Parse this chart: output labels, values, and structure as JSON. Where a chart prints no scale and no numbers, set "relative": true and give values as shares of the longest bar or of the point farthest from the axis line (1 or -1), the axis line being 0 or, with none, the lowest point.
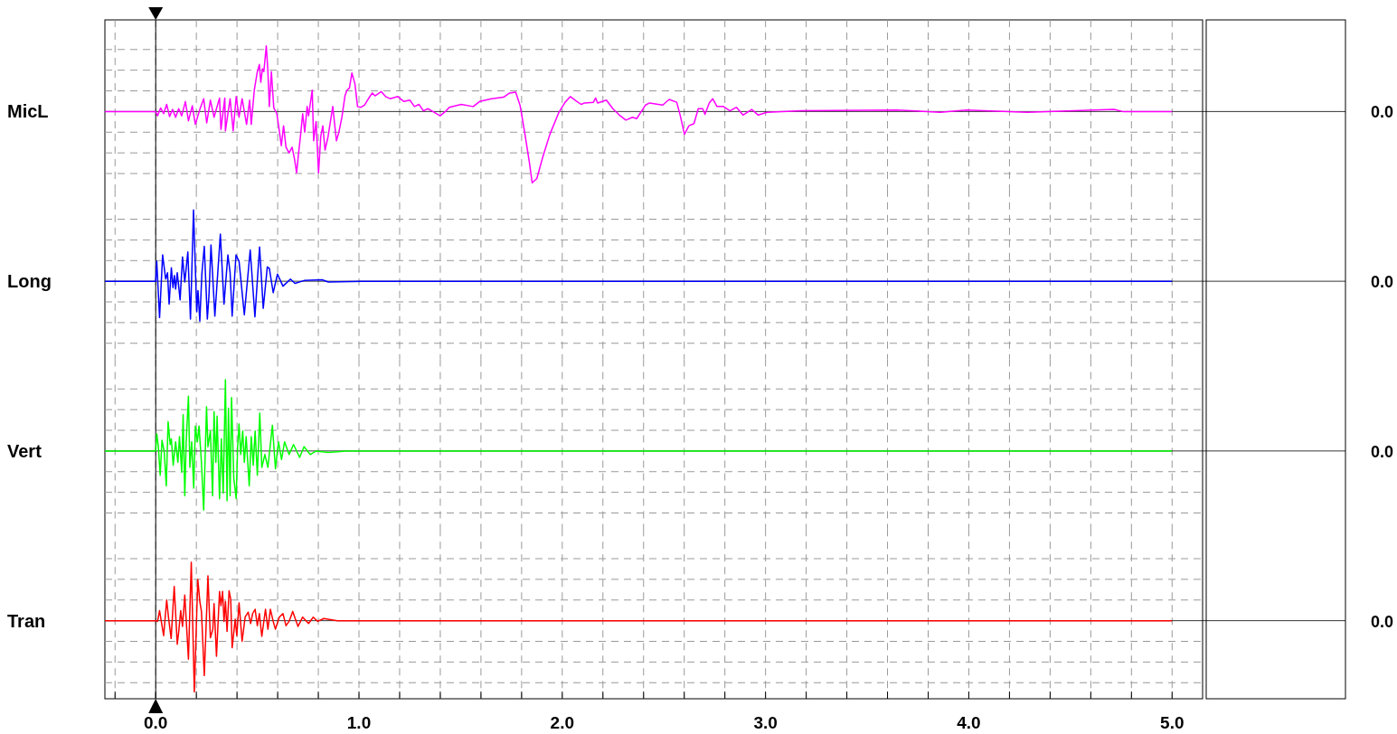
{
  "chart_data": [
    {
      "type": "line",
      "ylabel": "MicL",
      "annotations": [
        "0.0"
      ],
      "relative": true,
      "xlim": [
        -0.25,
        5.15
      ],
      "grid": true,
      "tick_labels": false,
      "xticks": [
        {
          "value": -0.2,
          "label": null
        },
        {
          "value": 0,
          "label": null
        },
        {
          "value": 0.2,
          "label": null
        },
        {
          "value": 0.4,
          "label": null
        },
        {
          "value": 0.6,
          "label": null
        },
        {
          "value": 0.8,
          "label": null
        },
        {
          "value": 1,
          "label": null
        },
        {
          "value": 1.2,
          "label": null
        },
        {
          "value": 1.4,
          "label": null
        },
        {
          "value": 1.6,
          "label": null
        },
        {
          "value": 1.8,
          "label": null
        },
        {
          "value": 2,
          "label": null
        },
        {
          "value": 2.2,
          "label": null
        },
        {
          "value": 2.4,
          "label": null
        },
        {
          "value": 2.6,
          "label": null
        },
        {
          "value": 2.8,
          "label": null
        },
        {
          "value": 3,
          "label": null
        },
        {
          "value": 3.2,
          "label": null
        },
        {
          "value": 3.4,
          "label": null
        },
        {
          "value": 3.6,
          "label": null
        },
        {
          "value": 3.8,
          "label": null
        },
        {
          "value": 4,
          "label": null
        },
        {
          "value": 4.2,
          "label": null
        },
        {
          "value": 4.4,
          "label": null
        },
        {
          "value": 4.6,
          "label": null
        },
        {
          "value": 4.8,
          "label": null
        },
        {
          "value": 5,
          "label": null
        }
      ],
      "ref_lines": [
        {
          "axis": "x",
          "value": 0,
          "color": "#000000"
        }
      ],
      "series": [
        {
          "color": "#ff00ff",
          "x": [
            -0.25,
            0,
            0.009,
            0.024,
            0.039,
            0.054,
            0.068,
            0.083,
            0.098,
            0.113,
            0.128,
            0.146,
            0.161,
            0.18,
            0.195,
            0.217,
            0.236,
            0.251,
            0.269,
            0.287,
            0.314,
            0.321,
            0.34,
            0.343,
            0.366,
            0.381,
            0.396,
            0.41,
            0.425,
            0.447,
            0.462,
            0.47,
            0.485,
            0.5,
            0.51,
            0.517,
            0.525,
            0.532,
            0.544,
            0.552,
            0.559,
            0.569,
            0.581,
            0.596,
            0.608,
            0.618,
            0.629,
            0.641,
            0.656,
            0.671,
            0.683,
            0.693,
            0.703,
            0.712,
            0.723,
            0.733,
            0.745,
            0.752,
            0.77,
            0.777,
            0.789,
            0.801,
            0.812,
            0.822,
            0.833,
            0.848,
            0.871,
            0.889,
            0.901,
            0.916,
            0.931,
            0.941,
            0.953,
            0.965,
            0.98,
            0.993,
            1.009,
            1.027,
            1.042,
            1.065,
            1.079,
            1.109,
            1.131,
            1.153,
            1.191,
            1.221,
            1.25,
            1.273,
            1.295,
            1.317,
            1.339,
            1.369,
            1.399,
            1.429,
            1.444,
            1.503,
            1.562,
            1.593,
            1.652,
            1.711,
            1.741,
            1.771,
            1.793,
            1.815,
            1.838,
            1.852,
            1.875,
            1.905,
            1.939,
            1.982,
            2.014,
            2.04,
            2.068,
            2.093,
            2.11,
            2.153,
            2.164,
            2.174,
            2.217,
            2.249,
            2.281,
            2.313,
            2.345,
            2.366,
            2.409,
            2.43,
            2.473,
            2.494,
            2.526,
            2.563,
            2.58,
            2.601,
            2.623,
            2.648,
            2.669,
            2.691,
            2.702,
            2.723,
            2.74,
            2.761,
            2.793,
            2.825,
            2.857,
            2.889,
            2.932,
            2.964,
            3.007,
            3.178,
            3.647,
            3.86,
            3.988,
            4.287,
            4.714,
            4.757,
            5.0
          ],
          "values": [
            0,
            0,
            -0.06,
            0.05,
            -0.03,
            0.1,
            -0.07,
            0.03,
            -0.08,
            0.04,
            -0.06,
            0.14,
            -0.13,
            0.08,
            -0.18,
            0.03,
            0.18,
            -0.16,
            0.16,
            -0.08,
            0.19,
            -0.25,
            0.19,
            -0.27,
            0.18,
            -0.27,
            0.21,
            -0.08,
            0.18,
            -0.18,
            0.16,
            -0.18,
            0.3,
            0.56,
            0.66,
            0.41,
            0.6,
            0.56,
            0.92,
            0.56,
            0.07,
            0.56,
            0.05,
            -0.03,
            -0.27,
            -0.48,
            -0.2,
            -0.5,
            -0.58,
            -0.5,
            -0.67,
            -0.86,
            -0.58,
            -0.35,
            -0.03,
            -0.29,
            0.07,
            -0.06,
            0.3,
            -0.41,
            -0.14,
            -0.86,
            -0.35,
            -0.2,
            -0.54,
            -0.35,
            0.07,
            -0.41,
            -0.29,
            -0.08,
            0.22,
            0.3,
            0.33,
            0.54,
            0.39,
            0.07,
            0.06,
            0.09,
            0.16,
            0.26,
            0.22,
            0.28,
            0.21,
            0.18,
            0.21,
            0.14,
            0.16,
            0.07,
            0.1,
            0.01,
            0.04,
            -0.01,
            -0.06,
            0.01,
            0.06,
            0.1,
            0.07,
            0.14,
            0.18,
            0.2,
            0.26,
            0.27,
            0.08,
            -0.29,
            -0.71,
            -1,
            -0.94,
            -0.63,
            -0.32,
            -0.02,
            0.13,
            0.21,
            0.15,
            0.1,
            0.12,
            0.13,
            0.19,
            0.12,
            0.16,
            0.04,
            -0.05,
            -0.12,
            -0.08,
            -0.1,
            0.09,
            0.12,
            0.1,
            0.09,
            0.17,
            0.13,
            -0.05,
            -0.32,
            -0.2,
            -0.17,
            0.04,
            0.04,
            -0.04,
            0.12,
            0.18,
            0.07,
            0.07,
            0.01,
            0.06,
            -0.05,
            0.03,
            -0.05,
            -0.01,
            0.01,
            0.02,
            -0.01,
            0.02,
            -0.01,
            0.03,
            0,
            0
          ]
        }
      ]
    },
    {
      "type": "line",
      "ylabel": "Long",
      "annotations": [
        "0.0"
      ],
      "relative": true,
      "xlim": [
        -0.25,
        5.15
      ],
      "grid": true,
      "tick_labels": false,
      "xticks": [
        {
          "value": -0.2,
          "label": null
        },
        {
          "value": 0,
          "label": null
        },
        {
          "value": 0.2,
          "label": null
        },
        {
          "value": 0.4,
          "label": null
        },
        {
          "value": 0.6,
          "label": null
        },
        {
          "value": 0.8,
          "label": null
        },
        {
          "value": 1,
          "label": null
        },
        {
          "value": 1.2,
          "label": null
        },
        {
          "value": 1.4,
          "label": null
        },
        {
          "value": 1.6,
          "label": null
        },
        {
          "value": 1.8,
          "label": null
        },
        {
          "value": 2,
          "label": null
        },
        {
          "value": 2.2,
          "label": null
        },
        {
          "value": 2.4,
          "label": null
        },
        {
          "value": 2.6,
          "label": null
        },
        {
          "value": 2.8,
          "label": null
        },
        {
          "value": 3,
          "label": null
        },
        {
          "value": 3.2,
          "label": null
        },
        {
          "value": 3.4,
          "label": null
        },
        {
          "value": 3.6,
          "label": null
        },
        {
          "value": 3.8,
          "label": null
        },
        {
          "value": 4,
          "label": null
        },
        {
          "value": 4.2,
          "label": null
        },
        {
          "value": 4.4,
          "label": null
        },
        {
          "value": 4.6,
          "label": null
        },
        {
          "value": 4.8,
          "label": null
        },
        {
          "value": 5,
          "label": null
        }
      ],
      "ref_lines": [
        {
          "axis": "x",
          "value": 0,
          "color": "#000000"
        }
      ],
      "series": [
        {
          "color": "#0000ff",
          "x": [
            -0.25,
            0,
            0.005,
            0.019,
            0.034,
            0.049,
            0.058,
            0.066,
            0.077,
            0.085,
            0.092,
            0.098,
            0.106,
            0.12,
            0.132,
            0.143,
            0.158,
            0.171,
            0.186,
            0.202,
            0.208,
            0.217,
            0.227,
            0.239,
            0.254,
            0.262,
            0.272,
            0.291,
            0.318,
            0.336,
            0.355,
            0.366,
            0.376,
            0.395,
            0.41,
            0.436,
            0.465,
            0.488,
            0.511,
            0.529,
            0.549,
            0.559,
            0.578,
            0.599,
            0.626,
            0.663,
            0.685,
            0.73,
            0.819,
            0.849,
            1.013,
            5.0
          ],
          "values": [
            0,
            0,
            0.28,
            -0.51,
            0.37,
            0.03,
            0.12,
            -0.32,
            0.19,
            -0.09,
            0.08,
            -0.11,
            0.12,
            -0.26,
            0.34,
            -0.01,
            0.41,
            -0.53,
            1,
            -0.43,
            -0.13,
            -0.56,
            0.1,
            0.49,
            -0.53,
            -0.2,
            0.51,
            -0.49,
            0.66,
            -0.32,
            0.37,
            0.12,
            -0.49,
            0.37,
            0.28,
            -0.47,
            0.44,
            -0.5,
            0.48,
            -0.38,
            0.2,
            0.18,
            -0.16,
            0.1,
            -0.07,
            0.03,
            -0.03,
            0.01,
            0.02,
            -0.01,
            0,
            0
          ]
        }
      ]
    },
    {
      "type": "line",
      "ylabel": "Vert",
      "annotations": [
        "0.0"
      ],
      "relative": true,
      "xlim": [
        -0.25,
        5.15
      ],
      "grid": true,
      "tick_labels": false,
      "xticks": [
        {
          "value": -0.2,
          "label": null
        },
        {
          "value": 0,
          "label": null
        },
        {
          "value": 0.2,
          "label": null
        },
        {
          "value": 0.4,
          "label": null
        },
        {
          "value": 0.6,
          "label": null
        },
        {
          "value": 0.8,
          "label": null
        },
        {
          "value": 1,
          "label": null
        },
        {
          "value": 1.2,
          "label": null
        },
        {
          "value": 1.4,
          "label": null
        },
        {
          "value": 1.6,
          "label": null
        },
        {
          "value": 1.8,
          "label": null
        },
        {
          "value": 2,
          "label": null
        },
        {
          "value": 2.2,
          "label": null
        },
        {
          "value": 2.4,
          "label": null
        },
        {
          "value": 2.6,
          "label": null
        },
        {
          "value": 2.8,
          "label": null
        },
        {
          "value": 3,
          "label": null
        },
        {
          "value": 3.2,
          "label": null
        },
        {
          "value": 3.4,
          "label": null
        },
        {
          "value": 3.6,
          "label": null
        },
        {
          "value": 3.8,
          "label": null
        },
        {
          "value": 4,
          "label": null
        },
        {
          "value": 4.2,
          "label": null
        },
        {
          "value": 4.4,
          "label": null
        },
        {
          "value": 4.6,
          "label": null
        },
        {
          "value": 4.8,
          "label": null
        },
        {
          "value": 5,
          "label": null
        }
      ],
      "ref_lines": [
        {
          "axis": "x",
          "value": 0,
          "color": "#000000"
        }
      ],
      "series": [
        {
          "color": "#00ff00",
          "x": [
            -0.25,
            0,
            0.005,
            0.013,
            0.022,
            0.031,
            0.042,
            0.052,
            0.061,
            0.071,
            0.077,
            0.086,
            0.098,
            0.109,
            0.117,
            0.128,
            0.135,
            0.143,
            0.15,
            0.161,
            0.168,
            0.177,
            0.187,
            0.195,
            0.205,
            0.213,
            0.225,
            0.236,
            0.25,
            0.257,
            0.269,
            0.28,
            0.287,
            0.296,
            0.302,
            0.314,
            0.323,
            0.332,
            0.343,
            0.351,
            0.358,
            0.366,
            0.373,
            0.384,
            0.396,
            0.403,
            0.41,
            0.418,
            0.428,
            0.436,
            0.445,
            0.46,
            0.47,
            0.48,
            0.489,
            0.5,
            0.512,
            0.522,
            0.537,
            0.552,
            0.574,
            0.589,
            0.604,
            0.619,
            0.634,
            0.656,
            0.678,
            0.708,
            0.73,
            0.76,
            0.79,
            0.849,
            0.938,
            5.0
          ],
          "values": [
            0,
            0,
            0.24,
            0.06,
            -0.34,
            0.15,
            -0.01,
            -0.49,
            0.41,
            0.09,
            0.17,
            -0.2,
            0.13,
            -0.16,
            0.2,
            -0.3,
            0.51,
            -0.63,
            0.13,
            0.77,
            -0.23,
            0.13,
            -0.52,
            0.35,
            0.13,
            0.35,
            -0.16,
            -0.83,
            0.62,
            0.06,
            0.28,
            -0.63,
            0.55,
            -0.16,
            0.49,
            -0.67,
            0.17,
            -0.59,
            1,
            -0.7,
            0.6,
            -0.63,
            0.75,
            -0.38,
            -0.67,
            0.06,
            0.38,
            -0.05,
            0.28,
            -0.16,
            0.2,
            -0.49,
            0.2,
            -0.2,
            0.28,
            -0.34,
            0.53,
            -0.23,
            -0.05,
            -0.23,
            0.36,
            -0.25,
            0.13,
            -0.12,
            0.13,
            -0.05,
            0.09,
            -0.09,
            0.06,
            -0.05,
            0,
            -0.02,
            0,
            0
          ]
        }
      ]
    },
    {
      "type": "line",
      "ylabel": "Tran",
      "annotations": [
        "0.0"
      ],
      "relative": true,
      "xlim": [
        -0.25,
        5.15
      ],
      "grid": true,
      "tick_labels": "x",
      "xticks": [
        {
          "value": -0.2,
          "label": null
        },
        {
          "value": 0,
          "label": "0.0"
        },
        {
          "value": 0.2,
          "label": null
        },
        {
          "value": 0.4,
          "label": null
        },
        {
          "value": 0.6,
          "label": null
        },
        {
          "value": 0.8,
          "label": null
        },
        {
          "value": 1,
          "label": "1.0"
        },
        {
          "value": 1.2,
          "label": null
        },
        {
          "value": 1.4,
          "label": null
        },
        {
          "value": 1.6,
          "label": null
        },
        {
          "value": 1.8,
          "label": null
        },
        {
          "value": 2,
          "label": "2.0"
        },
        {
          "value": 2.2,
          "label": null
        },
        {
          "value": 2.4,
          "label": null
        },
        {
          "value": 2.6,
          "label": null
        },
        {
          "value": 2.8,
          "label": null
        },
        {
          "value": 3,
          "label": "3.0"
        },
        {
          "value": 3.2,
          "label": null
        },
        {
          "value": 3.4,
          "label": null
        },
        {
          "value": 3.6,
          "label": null
        },
        {
          "value": 3.8,
          "label": null
        },
        {
          "value": 4,
          "label": "4.0"
        },
        {
          "value": 4.2,
          "label": null
        },
        {
          "value": 4.4,
          "label": null
        },
        {
          "value": 4.6,
          "label": null
        },
        {
          "value": 4.8,
          "label": null
        },
        {
          "value": 5,
          "label": "5.0"
        }
      ],
      "ref_lines": [
        {
          "axis": "x",
          "value": 0,
          "color": "#000000"
        }
      ],
      "series": [
        {
          "color": "#ff0000",
          "x": [
            -0.25,
            0,
            0.009,
            0.019,
            0.039,
            0.054,
            0.064,
            0.076,
            0.091,
            0.106,
            0.113,
            0.123,
            0.132,
            0.143,
            0.161,
            0.175,
            0.19,
            0.207,
            0.217,
            0.225,
            0.239,
            0.257,
            0.269,
            0.281,
            0.287,
            0.299,
            0.314,
            0.321,
            0.329,
            0.336,
            0.343,
            0.351,
            0.361,
            0.369,
            0.376,
            0.391,
            0.399,
            0.41,
            0.425,
            0.44,
            0.455,
            0.467,
            0.477,
            0.489,
            0.5,
            0.51,
            0.522,
            0.54,
            0.552,
            0.564,
            0.578,
            0.589,
            0.608,
            0.626,
            0.641,
            0.656,
            0.674,
            0.7,
            0.723,
            0.752,
            0.775,
            0.797,
            0.827,
            0.894,
            5.0
          ],
          "values": [
            0,
            0,
            -0.01,
            0.14,
            -0.21,
            0.29,
            0.02,
            -0.25,
            0.48,
            -0.33,
            -0.16,
            0.14,
            -0.08,
            0.36,
            -0.54,
            0.82,
            -1,
            0.58,
            0.27,
            0.13,
            -0.77,
            0.63,
            -0.24,
            -0.12,
            0.24,
            -0.5,
            0.41,
            0.21,
            0.41,
            -0.01,
            0.27,
            -0.15,
            0.42,
            0.3,
            -0.38,
            0.02,
            -0.21,
            0.25,
            -0.29,
            0.05,
            0.12,
            -0.04,
            0.1,
            0.16,
            -0.07,
            0.1,
            -0.22,
            0.16,
            -0.12,
            0.16,
            -0.01,
            -0.12,
            0.05,
            0.1,
            -0.07,
            -0.01,
            0.13,
            -0.08,
            0.05,
            -0.04,
            0.05,
            -0.01,
            0.03,
            0,
            0
          ]
        }
      ]
    }
  ]
}
